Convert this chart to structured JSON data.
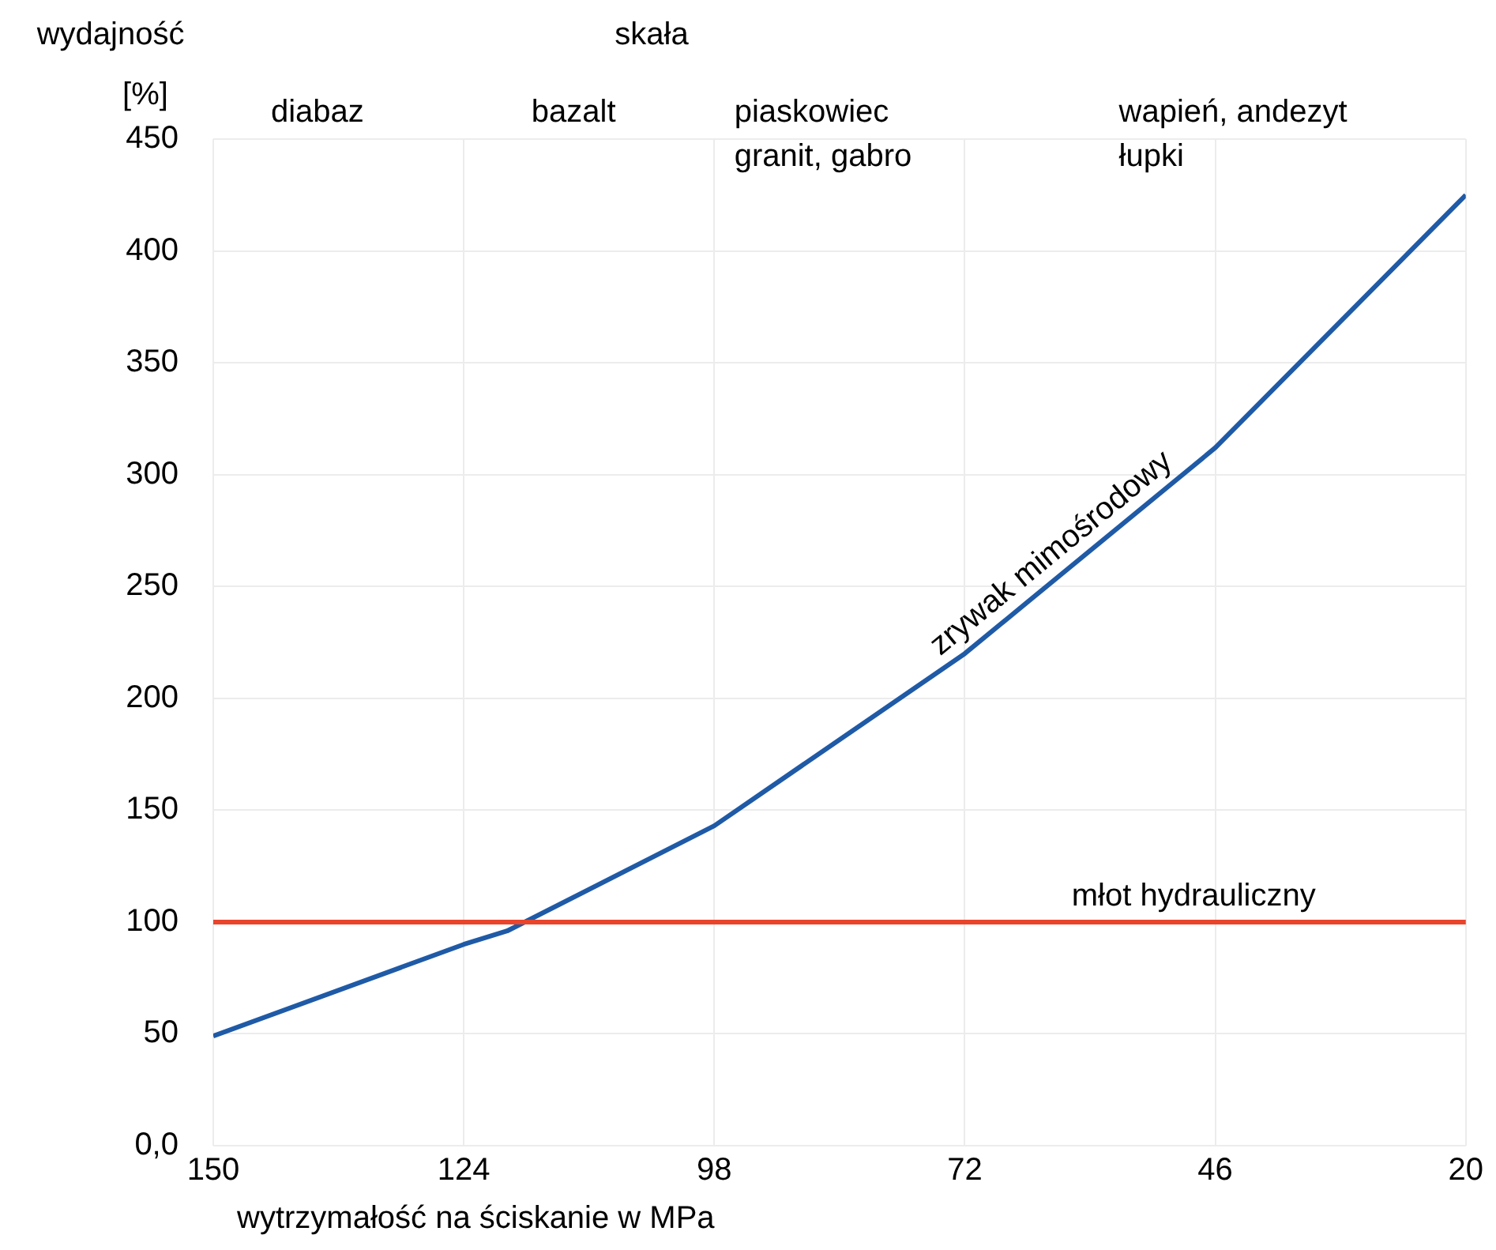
{
  "chart_data": {
    "type": "line",
    "ylabel": "wydajność\n[%]",
    "xlabel": "wytrzymałość na ściskanie w MPa",
    "x": [
      150,
      124,
      119.5,
      98,
      72,
      46,
      20
    ],
    "series": [
      {
        "name": "zrywak mimośrodowy",
        "color": "#1f5aa6",
        "values": [
          49,
          90,
          96,
          143,
          220,
          312,
          425
        ]
      }
    ],
    "xlim": [
      150,
      20
    ],
    "xticks": [
      150,
      124,
      98,
      72,
      46,
      20
    ],
    "ylim": [
      0,
      450
    ],
    "yticks": [
      {
        "value": 0,
        "label": "0,0"
      },
      50,
      100,
      150,
      200,
      250,
      300,
      350,
      400,
      450
    ],
    "ref_lines": [
      {
        "axis": "y",
        "value": 100,
        "label": "młot hydrauliczny",
        "color": "#e8452c"
      }
    ],
    "annotations": [
      "skała",
      "diabaz",
      "bazalt",
      "piaskowiec\ngranit, gabro",
      "wapień, andezyt\nłupki"
    ],
    "grid": true,
    "legend": false,
    "marker": "none",
    "line_style": "solid"
  }
}
